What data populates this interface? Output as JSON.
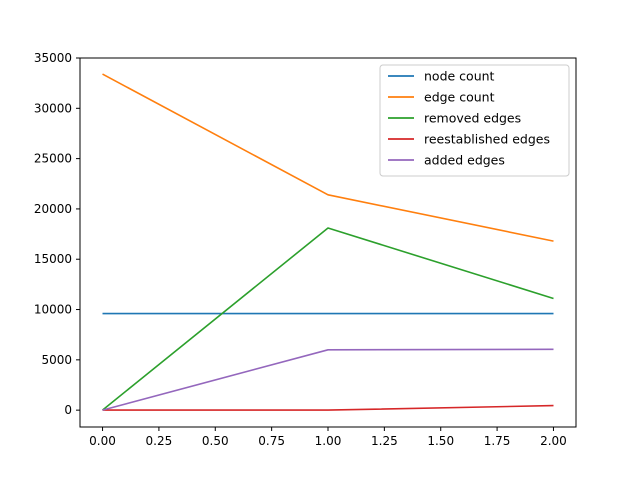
{
  "chart_data": {
    "type": "line",
    "x": [
      0,
      1,
      2
    ],
    "xlim": [
      -0.1,
      2.1
    ],
    "ylim": [
      -1675,
      35000
    ],
    "xticks": [
      0,
      0.25,
      0.5,
      0.75,
      1,
      1.25,
      1.5,
      1.75,
      2
    ],
    "xtick_labels": [
      "0.00",
      "0.25",
      "0.50",
      "0.75",
      "1.00",
      "1.25",
      "1.50",
      "1.75",
      "2.00"
    ],
    "yticks": [
      0,
      5000,
      10000,
      15000,
      20000,
      25000,
      30000,
      35000
    ],
    "ytick_labels": [
      "0",
      "5000",
      "10000",
      "15000",
      "20000",
      "25000",
      "30000",
      "35000"
    ],
    "grid": false,
    "legend_position": "top-right",
    "series": [
      {
        "name": "node count",
        "color": "#1f77b4",
        "values": [
          9600,
          9600,
          9600
        ]
      },
      {
        "name": "edge count",
        "color": "#ff7f0e",
        "values": [
          33400,
          21400,
          16800
        ]
      },
      {
        "name": "removed edges",
        "color": "#2ca02c",
        "values": [
          0,
          18100,
          11100
        ]
      },
      {
        "name": "reestablished edges",
        "color": "#d62728",
        "values": [
          0,
          0,
          450
        ]
      },
      {
        "name": "added edges",
        "color": "#9467bd",
        "values": [
          0,
          6000,
          6050
        ]
      }
    ]
  }
}
